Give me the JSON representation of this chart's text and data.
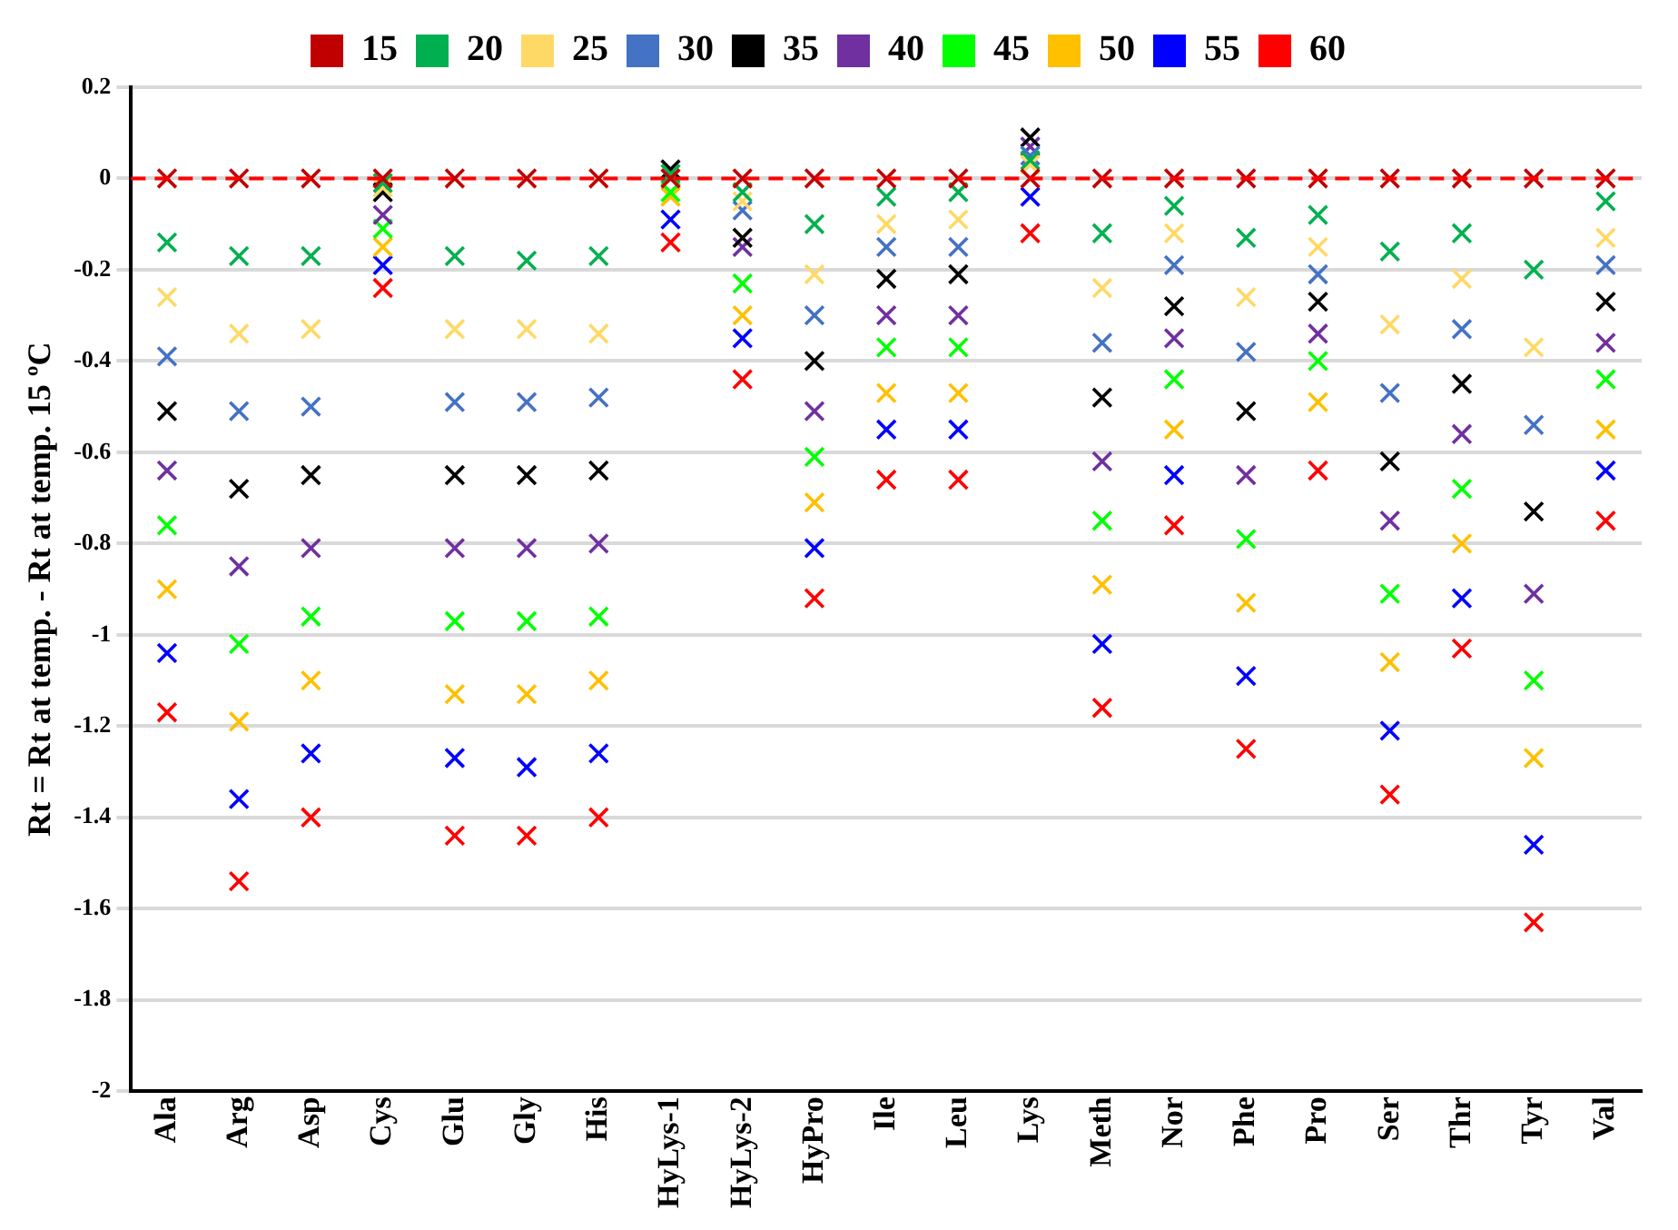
{
  "chart_data": {
    "type": "scatter",
    "ylabel": "Rt = Rt at temp. - Rt at temp. 15 ºC",
    "categories": [
      "Ala",
      "Arg",
      "Asp",
      "Cys",
      "Glu",
      "Gly",
      "His",
      "HyLys-1",
      "HyLys-2",
      "HyPro",
      "Ile",
      "Leu",
      "Lys",
      "Meth",
      "Nor",
      "Phe",
      "Pro",
      "Ser",
      "Thr",
      "Tyr",
      "Val"
    ],
    "series": [
      {
        "name": "15",
        "color": "#c00000",
        "values": [
          0,
          0,
          0,
          0,
          0,
          0,
          0,
          0,
          0,
          0,
          0,
          0,
          0,
          0,
          0,
          0,
          0,
          0,
          0,
          0,
          0
        ]
      },
      {
        "name": "20",
        "color": "#00b050",
        "values": [
          -0.14,
          -0.17,
          -0.17,
          -0.01,
          -0.17,
          -0.18,
          -0.17,
          0.01,
          -0.03,
          -0.1,
          -0.04,
          -0.03,
          0.04,
          -0.12,
          -0.06,
          -0.13,
          -0.08,
          -0.16,
          -0.12,
          -0.2,
          -0.05
        ]
      },
      {
        "name": "25",
        "color": "#ffd966",
        "values": [
          -0.26,
          -0.34,
          -0.33,
          -0.02,
          -0.33,
          -0.33,
          -0.34,
          0,
          -0.05,
          -0.21,
          -0.1,
          -0.09,
          0.03,
          -0.24,
          -0.12,
          -0.26,
          -0.15,
          -0.32,
          -0.22,
          -0.37,
          -0.13
        ]
      },
      {
        "name": "30",
        "color": "#4472c4",
        "values": [
          -0.39,
          -0.51,
          -0.5,
          null,
          -0.49,
          -0.49,
          -0.48,
          null,
          -0.07,
          -0.3,
          -0.15,
          -0.15,
          0.05,
          -0.36,
          -0.19,
          -0.38,
          -0.21,
          -0.47,
          -0.33,
          -0.54,
          -0.19
        ]
      },
      {
        "name": "35",
        "color": "#000000",
        "values": [
          -0.51,
          -0.68,
          -0.65,
          -0.03,
          -0.65,
          -0.65,
          -0.64,
          0.02,
          -0.13,
          -0.4,
          -0.22,
          -0.21,
          0.09,
          -0.48,
          -0.28,
          -0.51,
          -0.27,
          -0.62,
          -0.45,
          -0.73,
          -0.27
        ]
      },
      {
        "name": "40",
        "color": "#7030a0",
        "values": [
          -0.64,
          -0.85,
          -0.81,
          -0.08,
          -0.81,
          -0.81,
          -0.8,
          null,
          -0.15,
          -0.51,
          -0.3,
          -0.3,
          0.07,
          -0.62,
          -0.35,
          -0.65,
          -0.34,
          -0.75,
          -0.56,
          -0.91,
          -0.36
        ]
      },
      {
        "name": "45",
        "color": "#00ff00",
        "values": [
          -0.76,
          -1.02,
          -0.96,
          -0.11,
          -0.97,
          -0.97,
          -0.96,
          -0.03,
          -0.23,
          -0.61,
          -0.37,
          -0.37,
          null,
          -0.75,
          -0.44,
          -0.79,
          -0.4,
          -0.91,
          -0.68,
          -1.1,
          -0.44
        ]
      },
      {
        "name": "50",
        "color": "#ffc000",
        "values": [
          -0.9,
          -1.19,
          -1.1,
          -0.15,
          -1.13,
          -1.13,
          -1.1,
          -0.04,
          -0.3,
          -0.71,
          -0.47,
          -0.47,
          null,
          -0.89,
          -0.55,
          -0.93,
          -0.49,
          -1.06,
          -0.8,
          -1.27,
          -0.55
        ]
      },
      {
        "name": "55",
        "color": "#0000ff",
        "values": [
          -1.04,
          -1.36,
          -1.26,
          -0.19,
          -1.27,
          -1.29,
          -1.26,
          -0.09,
          -0.35,
          -0.81,
          -0.55,
          -0.55,
          -0.04,
          -1.02,
          -0.65,
          -1.09,
          null,
          -1.21,
          -0.92,
          -1.46,
          -0.64
        ]
      },
      {
        "name": "60",
        "color": "#ff0000",
        "values": [
          -1.17,
          -1.54,
          -1.4,
          -0.24,
          -1.44,
          -1.44,
          -1.4,
          -0.14,
          -0.44,
          -0.92,
          -0.66,
          -0.66,
          -0.12,
          -1.16,
          -0.76,
          -1.25,
          -0.64,
          -1.35,
          -1.03,
          -1.63,
          -0.75
        ]
      }
    ],
    "ylim": [
      -2,
      0.2
    ],
    "yticks": [
      0.2,
      0,
      -0.2,
      -0.4,
      -0.6,
      -0.8,
      -1,
      -1.2,
      -1.4,
      -1.6,
      -1.8,
      -2
    ],
    "ref_lines": [
      {
        "axis": "y",
        "value": 0,
        "color": "#ff0000",
        "line_style": "dashed"
      }
    ],
    "grid": "y",
    "legend": "top",
    "marker": "cross"
  }
}
